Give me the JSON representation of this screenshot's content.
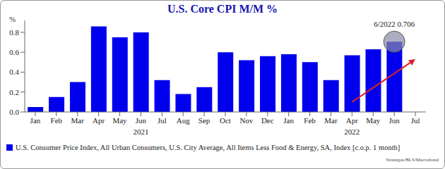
{
  "chart_data": {
    "type": "bar",
    "title": "U.S. Core CPI M/M %",
    "y_label": "%",
    "categories": [
      "Jan",
      "Feb",
      "Mar",
      "Apr",
      "May",
      "Jun",
      "Jul",
      "Aug",
      "Sep",
      "Oct",
      "Nov",
      "Dec",
      "Jan",
      "Feb",
      "Mar",
      "Apr",
      "May",
      "Jun",
      "Jul"
    ],
    "year_labels": [
      null,
      null,
      null,
      null,
      null,
      "2021",
      null,
      null,
      null,
      null,
      null,
      null,
      null,
      null,
      null,
      "2022",
      null,
      null,
      null
    ],
    "series": [
      {
        "name": "U.S. Consumer Price Index, All Urban Consumers, U.S. City Average, All Items Less Food & Energy, SA, Index [c.o.p. 1 month]",
        "color": "#0000ee",
        "values": [
          0.05,
          0.15,
          0.3,
          0.86,
          0.75,
          0.8,
          0.32,
          0.18,
          0.25,
          0.6,
          0.52,
          0.56,
          0.58,
          0.5,
          0.32,
          0.57,
          0.63,
          0.706,
          null
        ]
      }
    ],
    "ylim": [
      0,
      0.92
    ],
    "yticks": [
      {
        "value": 0,
        "label": "0.0"
      },
      0.2,
      0.4,
      0.6,
      0.8
    ],
    "grid": false,
    "legend": "bottom",
    "annotations": [
      {
        "text": "6/2022 0.706",
        "category_index": 17,
        "y": 0.706
      }
    ],
    "trend_arrow": {
      "from": {
        "category_index": 15,
        "y": 0.1
      },
      "to": {
        "category_index": 18,
        "y": 0.53
      },
      "color": "#e02020"
    },
    "source": "Strategas/BLS/Macrobond"
  }
}
